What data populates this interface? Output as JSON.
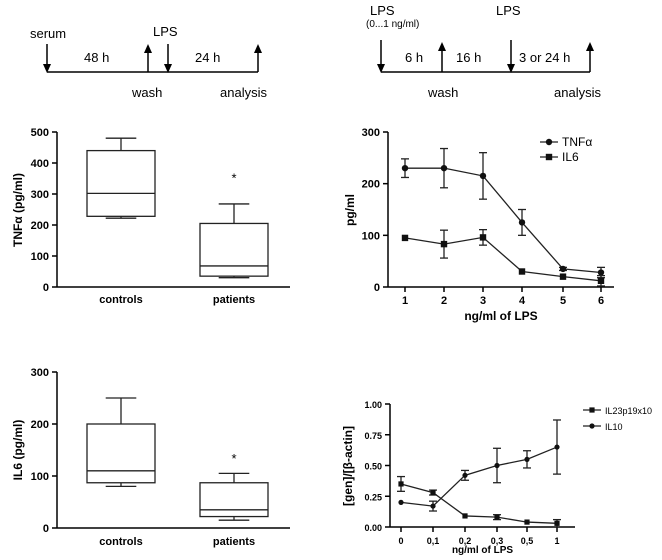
{
  "timeline_left": {
    "top_labels": [
      "serum",
      "LPS"
    ],
    "durations": [
      "48 h",
      "24 h"
    ],
    "bottom_labels": [
      "wash",
      "analysis"
    ]
  },
  "timeline_right": {
    "top_labels": [
      "LPS",
      "(0...1 ng/ml)",
      "LPS"
    ],
    "durations": [
      "6 h",
      "16 h",
      "3 or 24 h"
    ],
    "bottom_labels": [
      "wash",
      "analysis"
    ]
  },
  "chart_data": [
    {
      "type": "box",
      "id": "tnf-box",
      "ylabel": "TNFα (pg/ml)",
      "ylim": [
        0,
        500
      ],
      "yticks": [
        0,
        100,
        200,
        300,
        400,
        500
      ],
      "categories": [
        "controls",
        "patients"
      ],
      "boxes": [
        {
          "min": 222,
          "q1": 228,
          "median": 302,
          "q3": 440,
          "max": 480
        },
        {
          "min": 30,
          "q1": 35,
          "median": 68,
          "q3": 205,
          "max": 268
        }
      ],
      "annotations": [
        {
          "text": "*",
          "category": "patients",
          "y": 350
        }
      ]
    },
    {
      "type": "line",
      "id": "lps-line",
      "xlabel": "ng/ml of LPS",
      "ylabel": "pg/ml",
      "ylim": [
        0,
        300
      ],
      "yticks": [
        0,
        100,
        200,
        300
      ],
      "x": [
        1,
        2,
        3,
        4,
        5,
        6
      ],
      "series": [
        {
          "name": "TNFα",
          "marker": "circle",
          "values": [
            230,
            230,
            215,
            125,
            35,
            28
          ],
          "errors": [
            18,
            38,
            45,
            25,
            3,
            10
          ]
        },
        {
          "name": "IL6",
          "marker": "square",
          "values": [
            95,
            83,
            96,
            30,
            20,
            12
          ],
          "errors": [
            0,
            27,
            15,
            0,
            0,
            10
          ]
        }
      ],
      "legend": "top-right"
    },
    {
      "type": "box",
      "id": "il6-box",
      "ylabel": "IL6 (pg/ml)",
      "ylim": [
        0,
        300
      ],
      "yticks": [
        0,
        100,
        200,
        300
      ],
      "categories": [
        "controls",
        "patients"
      ],
      "boxes": [
        {
          "min": 80,
          "q1": 87,
          "median": 110,
          "q3": 200,
          "max": 250
        },
        {
          "min": 15,
          "q1": 22,
          "median": 35,
          "q3": 87,
          "max": 105
        }
      ],
      "annotations": [
        {
          "text": "*",
          "category": "patients",
          "y": 133
        }
      ]
    },
    {
      "type": "line",
      "id": "il23-line",
      "xlabel": "ng/ml of LPS",
      "ylabel": "[gen]/[β-actin]",
      "ylim": [
        0,
        1.0
      ],
      "yticks": [
        0.0,
        0.25,
        0.5,
        0.75,
        1.0
      ],
      "ytick_labels": [
        "0.00",
        "0.25",
        "0.50",
        "0.75",
        "1.00"
      ],
      "categories": [
        "0",
        "0,1",
        "0,2",
        "0,3",
        "0,5",
        "1"
      ],
      "series": [
        {
          "name": "IL23p19x10",
          "marker": "square",
          "values": [
            0.35,
            0.28,
            0.09,
            0.08,
            0.04,
            0.03
          ],
          "errors": [
            0.06,
            0.02,
            0.0,
            0.02,
            0.0,
            0.03
          ]
        },
        {
          "name": "IL10",
          "marker": "circle",
          "values": [
            0.2,
            0.17,
            0.42,
            0.5,
            0.55,
            0.65
          ],
          "errors": [
            0.0,
            0.04,
            0.04,
            0.14,
            0.07,
            0.22
          ]
        }
      ],
      "legend": "top-right"
    }
  ]
}
